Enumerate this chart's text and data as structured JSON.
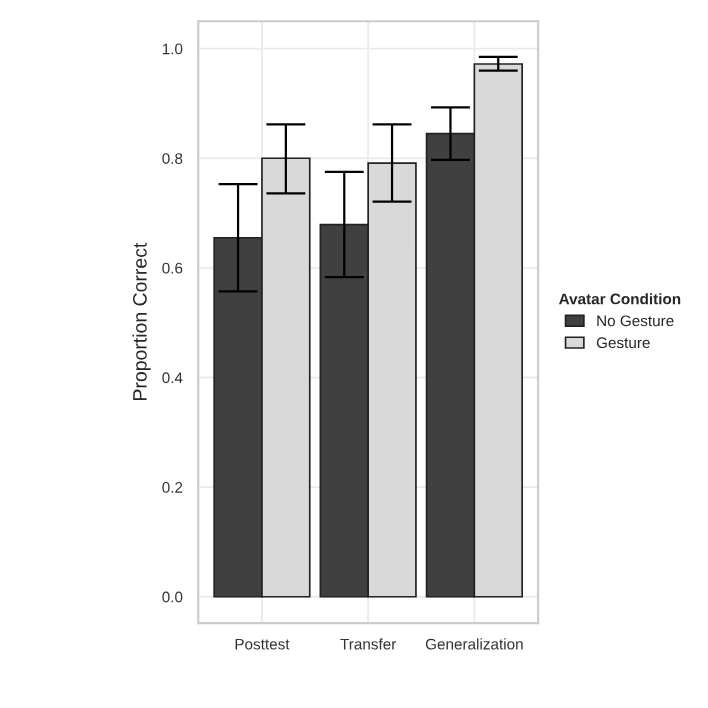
{
  "chart_data": {
    "type": "bar",
    "ylabel": "Proportion Correct",
    "legend_title": "Avatar Condition",
    "legend": "right",
    "grid": true,
    "categories": [
      "Posttest",
      "Transfer",
      "Generalization"
    ],
    "series": [
      {
        "name": "No Gesture",
        "color": "#404040",
        "values": [
          0.655,
          0.679,
          0.845
        ],
        "errors": [
          [
            0.557,
            0.753
          ],
          [
            0.583,
            0.775
          ],
          [
            0.797,
            0.893
          ]
        ]
      },
      {
        "name": "Gesture",
        "color": "#d9d9d9",
        "values": [
          0.8,
          0.791,
          0.972
        ],
        "errors": [
          [
            0.736,
            0.862
          ],
          [
            0.721,
            0.862
          ],
          [
            0.96,
            0.985
          ]
        ]
      }
    ],
    "ylim": [
      -0.048,
      1.05
    ],
    "yticks": [
      {
        "value": 0,
        "label": "0.0"
      },
      0.2,
      0.4,
      0.6,
      0.8,
      {
        "value": 1,
        "label": "1.0"
      }
    ]
  }
}
